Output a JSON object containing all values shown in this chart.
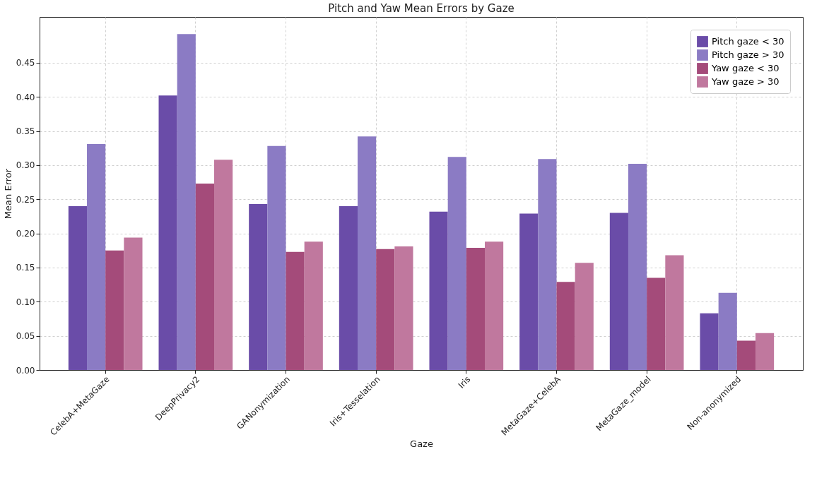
{
  "chart_data": {
    "type": "bar",
    "title": "Pitch and Yaw Mean Errors by Gaze",
    "xlabel": "Gaze",
    "ylabel": "Mean Error",
    "categories": [
      "CelebA+MetaGaze",
      "DeepPrivacy2",
      "GANonymization",
      "Iris+Tesselation",
      "Iris",
      "MetaGaze+CelebA",
      "MetaGaze_model",
      "Non-anonymized"
    ],
    "series": [
      {
        "name": "Pitch gaze < 30",
        "color": "#6a4ca8",
        "values": [
          0.24,
          0.402,
          0.243,
          0.24,
          0.232,
          0.229,
          0.23,
          0.083
        ]
      },
      {
        "name": "Pitch gaze > 30",
        "color": "#8b7bc4",
        "values": [
          0.331,
          0.492,
          0.328,
          0.342,
          0.312,
          0.309,
          0.302,
          0.113
        ]
      },
      {
        "name": "Yaw gaze < 30",
        "color": "#a44b7a",
        "values": [
          0.175,
          0.273,
          0.173,
          0.177,
          0.179,
          0.129,
          0.135,
          0.043
        ]
      },
      {
        "name": "Yaw gaze > 30",
        "color": "#c0789e",
        "values": [
          0.194,
          0.308,
          0.188,
          0.181,
          0.188,
          0.157,
          0.168,
          0.054
        ]
      }
    ],
    "ylim": [
      0,
      0.517
    ],
    "yticks": [
      {
        "value": 0,
        "label": "0.00"
      },
      0.05,
      {
        "value": 0.1,
        "label": "0.10"
      },
      0.15,
      {
        "value": 0.2,
        "label": "0.20"
      },
      0.25,
      {
        "value": 0.3,
        "label": "0.30"
      },
      0.35,
      {
        "value": 0.4,
        "label": "0.40"
      },
      0.45
    ],
    "grid": true,
    "legend": "top right"
  }
}
